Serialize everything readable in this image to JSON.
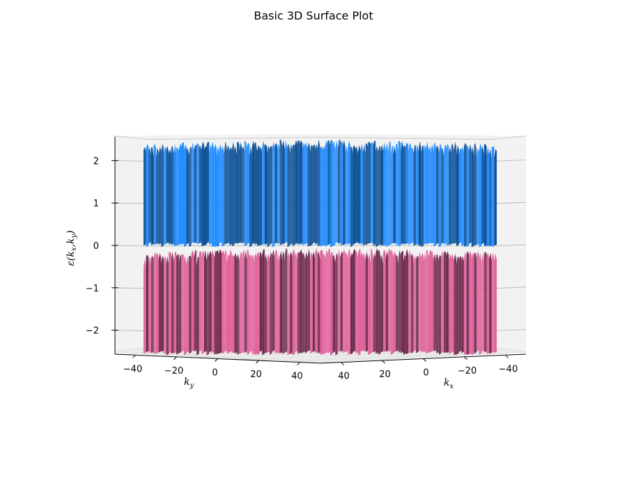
{
  "chart_data": {
    "type": "surface3d",
    "title": "Basic 3D Surface Plot",
    "x_axis": {
      "label_base": "k",
      "label_sub": "x",
      "range": [
        -50,
        50
      ],
      "ticks": [
        40,
        20,
        0,
        -20,
        -40
      ],
      "tick_labels": [
        "40",
        "20",
        "0",
        "−20",
        "−40"
      ]
    },
    "y_axis": {
      "label_base": "k",
      "label_sub": "y",
      "range": [
        -50,
        50
      ],
      "ticks": [
        -40,
        -20,
        0,
        20,
        40
      ],
      "tick_labels": [
        "−40",
        "−20",
        "0",
        "20",
        "40"
      ]
    },
    "z_axis": {
      "label_parts": [
        "ε(",
        "k",
        "x",
        ",",
        "k",
        "y",
        ")"
      ],
      "range": [
        -2.5,
        2.5
      ],
      "ticks": [
        2,
        1,
        0,
        -1,
        -2
      ],
      "tick_labels": [
        "2",
        "1",
        "0",
        "−1",
        "−2"
      ]
    },
    "grid": true,
    "series": [
      {
        "band": "upper",
        "z_min": 0.05,
        "z_max": 2.5,
        "color_light": "#1f8bff",
        "color_dark": "#0a4f96"
      },
      {
        "band": "lower",
        "z_min": -2.5,
        "z_max": -0.05,
        "color_light": "#e0609a",
        "color_dark": "#6e2a4c"
      }
    ]
  }
}
